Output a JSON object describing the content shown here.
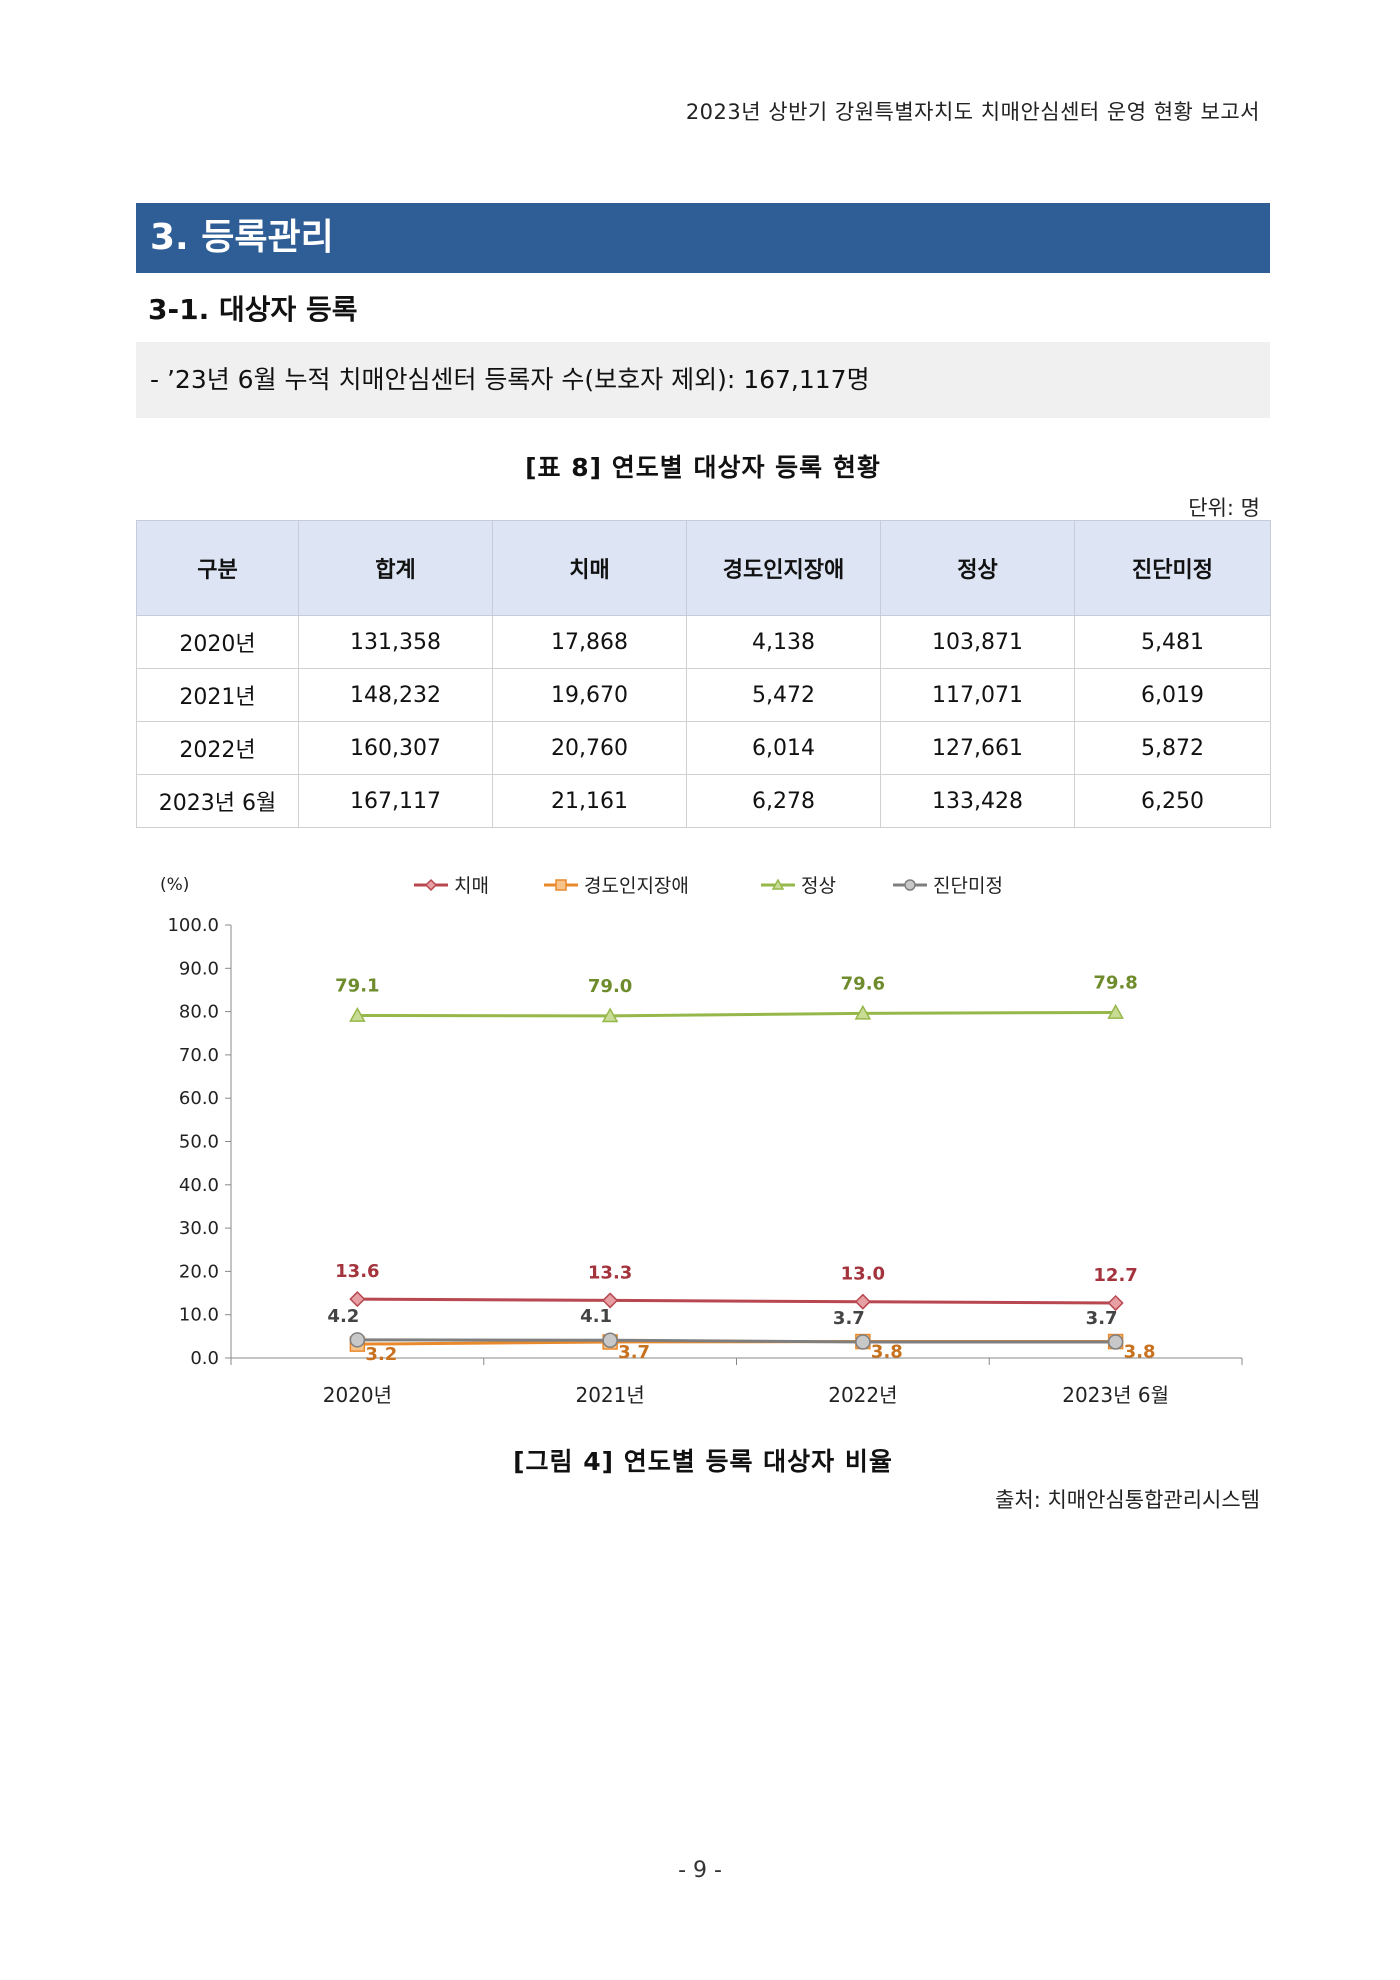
{
  "header": {
    "running_title": "2023년 상반기 강원특별자치도 치매안심센터 운영 현황 보고서"
  },
  "section": {
    "title": "3. 등록관리"
  },
  "subsection": {
    "title": "3-1. 대상자 등록"
  },
  "summary": {
    "text": "- ’23년 6월 누적 치매안심센터 등록자 수(보호자 제외): 167,117명"
  },
  "table": {
    "caption": "[표 8] 연도별 대상자 등록 현황",
    "unit": "단위: 명",
    "columns": [
      "구분",
      "합계",
      "치매",
      "경도인지장애",
      "정상",
      "진단미정"
    ],
    "rows": [
      [
        "2020년",
        "131,358",
        "17,868",
        "4,138",
        "103,871",
        "5,481"
      ],
      [
        "2021년",
        "148,232",
        "19,670",
        "5,472",
        "117,071",
        "6,019"
      ],
      [
        "2022년",
        "160,307",
        "20,760",
        "6,014",
        "127,661",
        "5,872"
      ],
      [
        "2023년 6월",
        "167,117",
        "21,161",
        "6,278",
        "133,428",
        "6,250"
      ]
    ]
  },
  "chart_data": {
    "type": "line",
    "ylabel": "(%)",
    "ylim": [
      0,
      100
    ],
    "yticks": [
      "0.0",
      "10.0",
      "20.0",
      "30.0",
      "40.0",
      "50.0",
      "60.0",
      "70.0",
      "80.0",
      "90.0",
      "100.0"
    ],
    "categories": [
      "2020년",
      "2021년",
      "2022년",
      "2023년 6월"
    ],
    "legend_position": "top",
    "grid": false,
    "series": [
      {
        "name": "치매",
        "values": [
          13.6,
          13.3,
          13.0,
          12.7
        ],
        "labels": [
          "13.6",
          "13.3",
          "13.0",
          "12.7"
        ],
        "color": "#b8474f",
        "marker": "diamond"
      },
      {
        "name": "경도인지장애",
        "values": [
          3.2,
          3.7,
          3.8,
          3.8
        ],
        "labels": [
          "3.2",
          "3.7",
          "3.8",
          "3.8"
        ],
        "color": "#e8892c",
        "marker": "square"
      },
      {
        "name": "정상",
        "values": [
          79.1,
          79.0,
          79.6,
          79.8
        ],
        "labels": [
          "79.1",
          "79.0",
          "79.6",
          "79.8"
        ],
        "color": "#96b84a",
        "marker": "triangle"
      },
      {
        "name": "진단미정",
        "values": [
          4.2,
          4.1,
          3.7,
          3.7
        ],
        "labels": [
          "4.2",
          "4.1",
          "3.7",
          "3.7"
        ],
        "color": "#7f7f7f",
        "marker": "circle"
      }
    ]
  },
  "figure": {
    "caption": "[그림 4] 연도별 등록 대상자 비율",
    "source": "출처: 치매안심통합관리시스템"
  },
  "footer": {
    "page_number": "- 9 -"
  }
}
